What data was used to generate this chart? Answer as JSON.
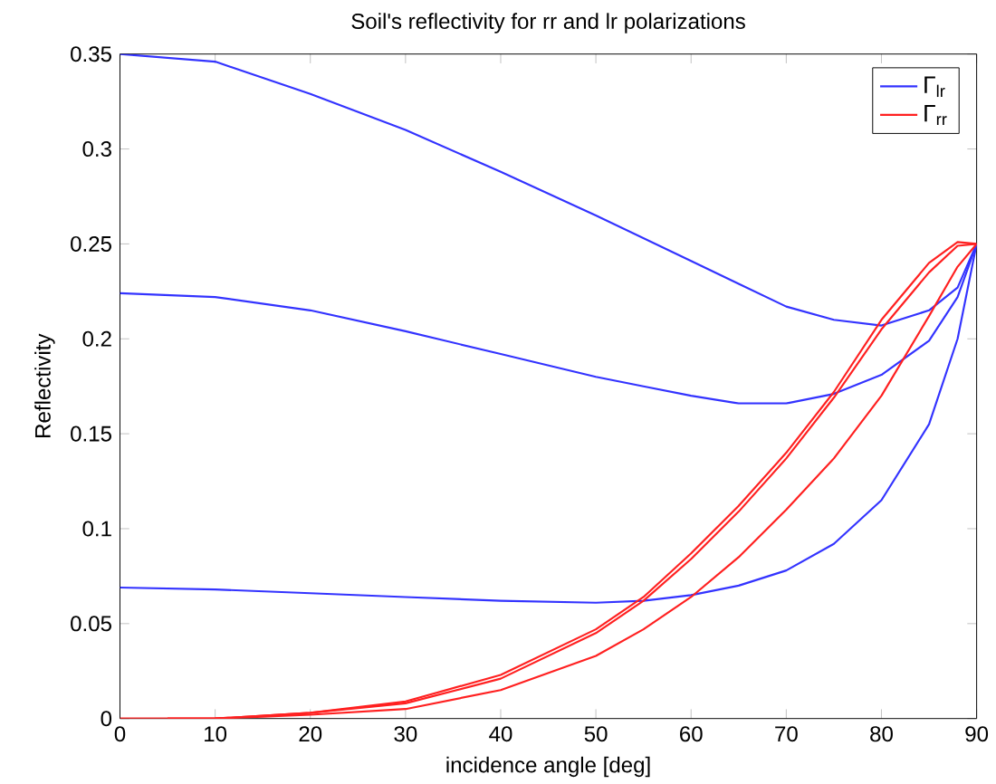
{
  "chart_data": {
    "type": "line",
    "title": "Soil's reflectivity for rr and lr polarizations",
    "xlabel": "incidence angle [deg]",
    "ylabel": "Reflectivity",
    "x": [
      0,
      10,
      20,
      30,
      40,
      50,
      55,
      60,
      65,
      70,
      75,
      80,
      85,
      88,
      90
    ],
    "series": [
      {
        "name": "Γ$_{lr}$",
        "color": "#3333ff",
        "values": [
          0.35,
          0.346,
          0.329,
          0.31,
          0.288,
          0.265,
          0.253,
          0.241,
          0.229,
          0.217,
          0.21,
          0.207,
          0.215,
          0.227,
          0.25
        ]
      },
      {
        "color": "#3333ff",
        "values": [
          0.224,
          0.222,
          0.215,
          0.204,
          0.192,
          0.18,
          0.175,
          0.17,
          0.166,
          0.166,
          0.171,
          0.181,
          0.199,
          0.222,
          0.25
        ]
      },
      {
        "color": "#3333ff",
        "values": [
          0.069,
          0.068,
          0.066,
          0.064,
          0.062,
          0.061,
          0.062,
          0.065,
          0.07,
          0.078,
          0.092,
          0.115,
          0.155,
          0.2,
          0.25
        ]
      },
      {
        "name": "Γ$_{rr}$",
        "color": "#ff2020",
        "values": [
          0,
          0,
          0.003,
          0.009,
          0.023,
          0.047,
          0.064,
          0.087,
          0.112,
          0.14,
          0.172,
          0.21,
          0.24,
          0.251,
          0.25
        ]
      },
      {
        "color": "#ff2020",
        "x": [
          5,
          10,
          20,
          30,
          40,
          50,
          55,
          60,
          65,
          70,
          75,
          80,
          85,
          88,
          90
        ],
        "values": [
          0,
          0,
          0.003,
          0.008,
          0.021,
          0.045,
          0.062,
          0.084,
          0.109,
          0.137,
          0.169,
          0.205,
          0.235,
          0.249,
          0.25
        ]
      },
      {
        "color": "#ff2020",
        "x": [
          10,
          15,
          20,
          30,
          40,
          50,
          55,
          60,
          65,
          70,
          75,
          80,
          85,
          88,
          90
        ],
        "values": [
          0,
          0.001,
          0.002,
          0.005,
          0.015,
          0.033,
          0.047,
          0.064,
          0.085,
          0.11,
          0.137,
          0.17,
          0.212,
          0.238,
          0.25
        ]
      }
    ],
    "xlim": [
      0,
      90
    ],
    "ylim": [
      0,
      0.35
    ],
    "xticks": [
      0,
      10,
      20,
      30,
      40,
      50,
      60,
      70,
      80,
      90
    ],
    "yticks": [
      0,
      0.05,
      0.1,
      0.15,
      0.2,
      0.25,
      0.3,
      0.35
    ],
    "legend": "top right",
    "grid": false,
    "marker": "none",
    "line_style": "solid"
  }
}
